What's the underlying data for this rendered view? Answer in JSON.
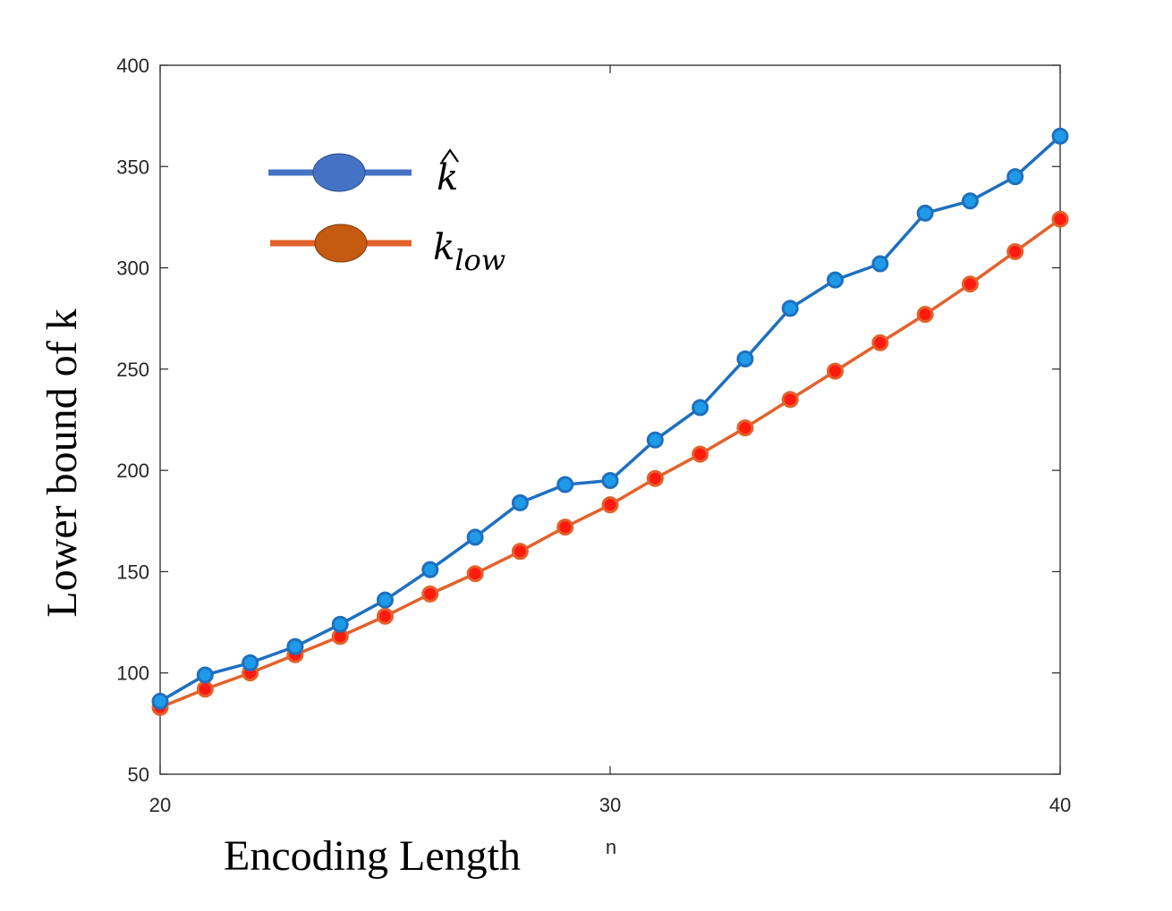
{
  "chart_data": {
    "type": "line",
    "xlabel": "Encoding Length",
    "xlabel_secondary": "n",
    "ylabel": "Lower bound of k",
    "xlim": [
      20,
      40
    ],
    "ylim": [
      50,
      400
    ],
    "xticks": [
      20,
      30,
      40
    ],
    "yticks": [
      50,
      100,
      150,
      200,
      250,
      300,
      350,
      400
    ],
    "grid": false,
    "legend_position": "top-left",
    "x": [
      20,
      21,
      22,
      23,
      24,
      25,
      26,
      27,
      28,
      29,
      30,
      31,
      32,
      33,
      34,
      35,
      36,
      37,
      38,
      39,
      40
    ],
    "series": [
      {
        "name": "k̂",
        "legend_symbol": "hat-k",
        "color": "#1f6fbf",
        "marker_color": "#1e9be8",
        "values": [
          86,
          99,
          105,
          113,
          124,
          136,
          151,
          167,
          184,
          193,
          195,
          215,
          231,
          255,
          280,
          294,
          302,
          327,
          333,
          345,
          365
        ]
      },
      {
        "name": "k_low",
        "legend_symbol": "k-low",
        "color": "#e2622b",
        "marker_color": "#ff1a10",
        "values": [
          83,
          92,
          100,
          109,
          118,
          128,
          139,
          149,
          160,
          172,
          183,
          196,
          208,
          221,
          235,
          249,
          263,
          277,
          292,
          308,
          324
        ]
      }
    ],
    "legend": {
      "hat_base": "k",
      "low_base": "k",
      "low_subscript": "low",
      "hat_line_color": "#4472c4",
      "hat_marker_color": "#4472c4",
      "low_line_color": "#e2622b",
      "low_marker_color": "#c55a11"
    }
  }
}
